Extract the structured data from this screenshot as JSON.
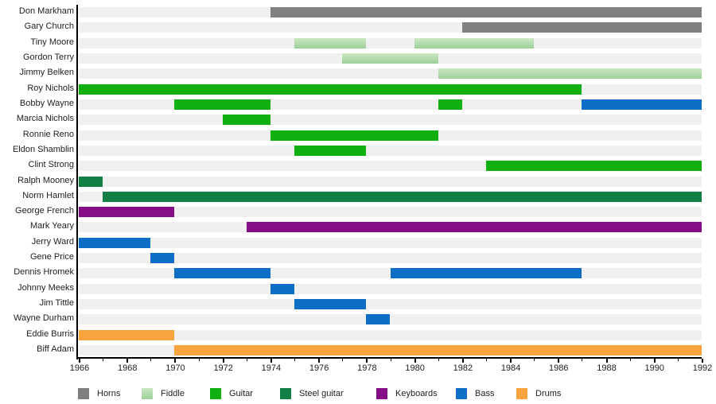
{
  "chart_data": {
    "type": "bar",
    "variant": "horizontal-gantt-timeline",
    "title": "",
    "xlabel": "",
    "ylabel": "",
    "grid": false,
    "legend_position": "bottom",
    "x_axis": {
      "min": 1966,
      "max": 1992,
      "labeled_ticks": [
        1966,
        1968,
        1970,
        1972,
        1974,
        1976,
        1978,
        1980,
        1982,
        1984,
        1986,
        1988,
        1990,
        1992
      ],
      "minor_tick_every_year": true
    },
    "legend": [
      {
        "label": "Horns",
        "color": "#808080"
      },
      {
        "label": "Fiddle",
        "color": "#9ed098",
        "color_top": "#c9e7c2"
      },
      {
        "label": "Guitar",
        "color": "#10b010"
      },
      {
        "label": "Steel guitar",
        "color": "#128045"
      },
      {
        "label": "Keyboards",
        "color": "#860d86"
      },
      {
        "label": "Bass",
        "color": "#0e6ec5"
      },
      {
        "label": "Drums",
        "color": "#f9a33c"
      }
    ],
    "rows": [
      {
        "name": "Don Markham",
        "segments": [
          {
            "instrument": "Horns",
            "start": 1974,
            "end": 1992
          }
        ]
      },
      {
        "name": "Gary Church",
        "segments": [
          {
            "instrument": "Horns",
            "start": 1982,
            "end": 1992
          }
        ]
      },
      {
        "name": "Tiny Moore",
        "segments": [
          {
            "instrument": "Fiddle",
            "start": 1975,
            "end": 1978
          },
          {
            "instrument": "Fiddle",
            "start": 1980,
            "end": 1985
          }
        ]
      },
      {
        "name": "Gordon Terry",
        "segments": [
          {
            "instrument": "Fiddle",
            "start": 1977,
            "end": 1981
          }
        ]
      },
      {
        "name": "Jimmy Belken",
        "segments": [
          {
            "instrument": "Fiddle",
            "start": 1981,
            "end": 1992
          }
        ]
      },
      {
        "name": "Roy Nichols",
        "segments": [
          {
            "instrument": "Guitar",
            "start": 1966,
            "end": 1987
          }
        ]
      },
      {
        "name": "Bobby Wayne",
        "segments": [
          {
            "instrument": "Guitar",
            "start": 1970,
            "end": 1974
          },
          {
            "instrument": "Guitar",
            "start": 1981,
            "end": 1982
          },
          {
            "instrument": "Bass",
            "start": 1987,
            "end": 1992
          }
        ]
      },
      {
        "name": "Marcia Nichols",
        "segments": [
          {
            "instrument": "Guitar",
            "start": 1972,
            "end": 1974
          }
        ]
      },
      {
        "name": "Ronnie Reno",
        "segments": [
          {
            "instrument": "Guitar",
            "start": 1974,
            "end": 1981
          }
        ]
      },
      {
        "name": "Eldon Shamblin",
        "segments": [
          {
            "instrument": "Guitar",
            "start": 1975,
            "end": 1978
          }
        ]
      },
      {
        "name": "Clint Strong",
        "segments": [
          {
            "instrument": "Guitar",
            "start": 1983,
            "end": 1992
          }
        ]
      },
      {
        "name": "Ralph Mooney",
        "segments": [
          {
            "instrument": "Steel guitar",
            "start": 1966,
            "end": 1967
          }
        ]
      },
      {
        "name": "Norm Hamlet",
        "segments": [
          {
            "instrument": "Steel guitar",
            "start": 1967,
            "end": 1992
          }
        ]
      },
      {
        "name": "George French",
        "segments": [
          {
            "instrument": "Keyboards",
            "start": 1966,
            "end": 1970
          }
        ]
      },
      {
        "name": "Mark Yeary",
        "segments": [
          {
            "instrument": "Keyboards",
            "start": 1973,
            "end": 1992
          }
        ]
      },
      {
        "name": "Jerry Ward",
        "segments": [
          {
            "instrument": "Bass",
            "start": 1966,
            "end": 1969
          }
        ]
      },
      {
        "name": "Gene Price",
        "segments": [
          {
            "instrument": "Bass",
            "start": 1969,
            "end": 1970
          }
        ]
      },
      {
        "name": "Dennis Hromek",
        "segments": [
          {
            "instrument": "Bass",
            "start": 1970,
            "end": 1974
          },
          {
            "instrument": "Bass",
            "start": 1979,
            "end": 1987
          }
        ]
      },
      {
        "name": "Johnny Meeks",
        "segments": [
          {
            "instrument": "Bass",
            "start": 1974,
            "end": 1975
          }
        ]
      },
      {
        "name": "Jim Tittle",
        "segments": [
          {
            "instrument": "Bass",
            "start": 1975,
            "end": 1978
          }
        ]
      },
      {
        "name": "Wayne Durham",
        "segments": [
          {
            "instrument": "Bass",
            "start": 1978,
            "end": 1979
          }
        ]
      },
      {
        "name": "Eddie Burris",
        "segments": [
          {
            "instrument": "Drums",
            "start": 1966,
            "end": 1970
          }
        ]
      },
      {
        "name": "Biff Adam",
        "segments": [
          {
            "instrument": "Drums",
            "start": 1970,
            "end": 1992
          }
        ]
      }
    ],
    "style": {
      "row_track_color": "#f0f0f0",
      "axis_color": "#000000",
      "background": "#ffffff"
    }
  }
}
